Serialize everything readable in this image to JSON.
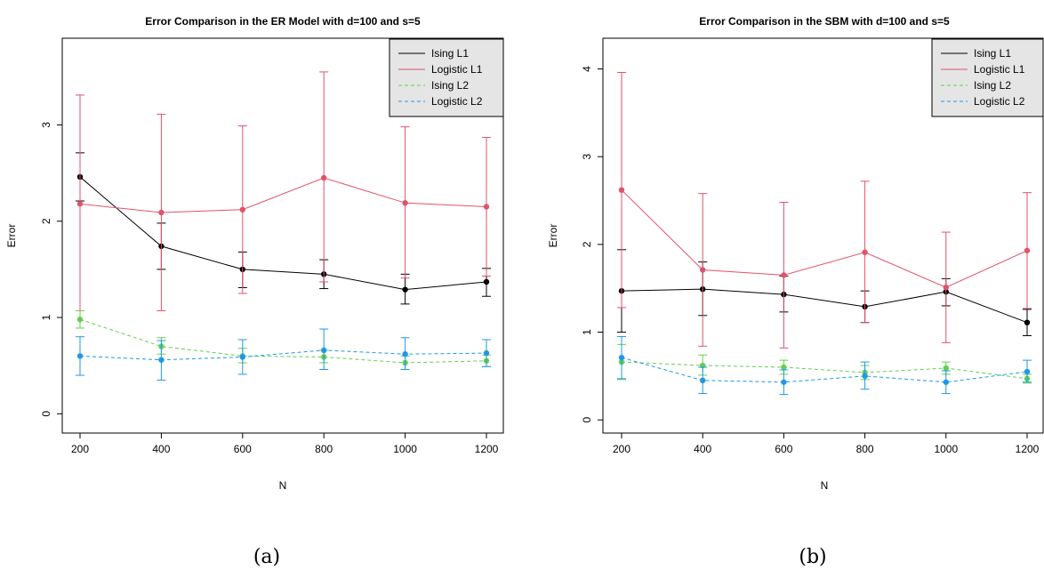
{
  "chart_data": [
    {
      "type": "line",
      "title": "Error Comparison in the ER Model with d=100 and s=5",
      "xlabel": "N",
      "ylabel": "Error",
      "caption": "(a)",
      "x": [
        200,
        400,
        600,
        800,
        1000,
        1200
      ],
      "xticks": [
        "200",
        "400",
        "600",
        "800",
        "1000",
        "1200"
      ],
      "ylim": [
        -0.2,
        3.9
      ],
      "yticks": [
        0,
        1,
        2,
        3
      ],
      "grid": false,
      "legend_position": "top-right",
      "series": [
        {
          "name": "Ising L1",
          "color": "#000000",
          "dash": false,
          "values": [
            2.46,
            1.74,
            1.5,
            1.45,
            1.29,
            1.37
          ],
          "err_low": [
            2.21,
            1.5,
            1.31,
            1.3,
            1.14,
            1.22
          ],
          "err_high": [
            2.71,
            1.98,
            1.68,
            1.6,
            1.45,
            1.51
          ]
        },
        {
          "name": "Logistic L1",
          "color": "#df536b",
          "dash": false,
          "values": [
            2.18,
            2.09,
            2.12,
            2.45,
            2.19,
            2.15
          ],
          "err_low": [
            1.07,
            1.07,
            1.25,
            1.37,
            1.41,
            1.43
          ],
          "err_high": [
            3.31,
            3.11,
            2.99,
            3.55,
            2.98,
            2.87
          ]
        },
        {
          "name": "Ising L2",
          "color": "#61d04f",
          "dash": true,
          "values": [
            0.98,
            0.7,
            0.6,
            0.59,
            0.53,
            0.55
          ],
          "err_low": [
            0.89,
            0.62,
            0.53,
            0.53,
            0.46,
            0.49
          ],
          "err_high": [
            1.07,
            0.79,
            0.68,
            0.66,
            0.6,
            0.61
          ]
        },
        {
          "name": "Logistic L2",
          "color": "#2297e6",
          "dash": true,
          "values": [
            0.6,
            0.56,
            0.59,
            0.66,
            0.62,
            0.63
          ],
          "err_low": [
            0.4,
            0.35,
            0.41,
            0.46,
            0.46,
            0.49
          ],
          "err_high": [
            0.8,
            0.76,
            0.77,
            0.88,
            0.79,
            0.77
          ]
        }
      ]
    },
    {
      "type": "line",
      "title": "Error Comparison in the SBM with d=100 and s=5",
      "xlabel": "N",
      "ylabel": "Error",
      "caption": "(b)",
      "x": [
        200,
        400,
        600,
        800,
        1000,
        1200
      ],
      "xticks": [
        "200",
        "400",
        "600",
        "800",
        "1000",
        "1200"
      ],
      "ylim": [
        -0.15,
        4.35
      ],
      "yticks": [
        0,
        1,
        2,
        3,
        4
      ],
      "grid": false,
      "legend_position": "top-right",
      "series": [
        {
          "name": "Ising L1",
          "color": "#000000",
          "dash": false,
          "values": [
            1.47,
            1.49,
            1.43,
            1.29,
            1.46,
            1.11
          ],
          "err_low": [
            1.0,
            1.19,
            1.23,
            1.11,
            1.3,
            0.96
          ],
          "err_high": [
            1.94,
            1.8,
            1.64,
            1.47,
            1.61,
            1.26
          ]
        },
        {
          "name": "Logistic L1",
          "color": "#df536b",
          "dash": false,
          "values": [
            2.62,
            1.71,
            1.65,
            1.91,
            1.51,
            1.93
          ],
          "err_low": [
            1.28,
            0.84,
            0.82,
            1.11,
            0.88,
            1.27
          ],
          "err_high": [
            3.96,
            2.58,
            2.48,
            2.72,
            2.14,
            2.59
          ]
        },
        {
          "name": "Ising L2",
          "color": "#61d04f",
          "dash": true,
          "values": [
            0.66,
            0.62,
            0.6,
            0.54,
            0.59,
            0.47
          ],
          "err_low": [
            0.46,
            0.51,
            0.52,
            0.46,
            0.52,
            0.42
          ],
          "err_high": [
            0.86,
            0.74,
            0.68,
            0.62,
            0.66,
            0.52
          ]
        },
        {
          "name": "Logistic L2",
          "color": "#2297e6",
          "dash": true,
          "values": [
            0.71,
            0.45,
            0.43,
            0.5,
            0.43,
            0.55
          ],
          "err_low": [
            0.47,
            0.3,
            0.29,
            0.35,
            0.3,
            0.43
          ],
          "err_high": [
            0.95,
            0.6,
            0.57,
            0.66,
            0.56,
            0.68
          ]
        }
      ]
    }
  ]
}
